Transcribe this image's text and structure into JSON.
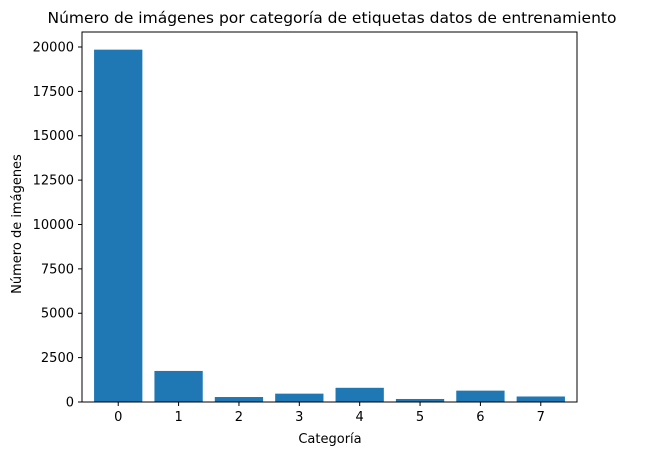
{
  "chart_data": {
    "type": "bar",
    "title": "Número de imágenes por categoría de etiquetas datos de entrenamiento",
    "xlabel": "Categoría",
    "ylabel": "Número de imágenes",
    "categories": [
      "0",
      "1",
      "2",
      "3",
      "4",
      "5",
      "6",
      "7"
    ],
    "values": [
      19850,
      1750,
      280,
      470,
      800,
      170,
      640,
      310
    ],
    "ylim": [
      0,
      20845
    ],
    "yticks": [
      0,
      2500,
      5000,
      7500,
      10000,
      12500,
      15000,
      17500,
      20000
    ],
    "ytick_labels": [
      "0",
      "2500",
      "5000",
      "7500",
      "10000",
      "12500",
      "15000",
      "17500",
      "20000"
    ],
    "bar_color": "#1f77b4",
    "grid": false,
    "legend": "none"
  }
}
